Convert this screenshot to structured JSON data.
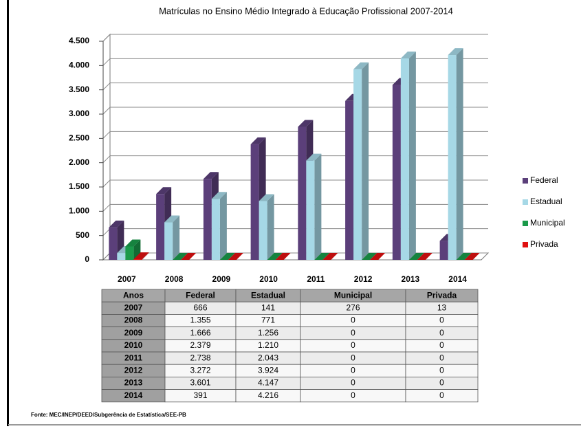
{
  "chart_data": {
    "type": "bar3d",
    "title": "Matrículas no Ensino Médio Integrado à Educação Profissional 2007-2014",
    "categories": [
      "2007",
      "2008",
      "2009",
      "2010",
      "2011",
      "2012",
      "2013",
      "2014"
    ],
    "series": [
      {
        "name": "Federal",
        "color": "#5b3f7a",
        "values": [
          666,
          1355,
          1666,
          2379,
          2738,
          3272,
          3601,
          391
        ],
        "value_labels": [
          "666",
          "1.355",
          "1.666",
          "2.379",
          "2.738",
          "3.272",
          "3.601",
          "391"
        ]
      },
      {
        "name": "Estadual",
        "color": "#a6d8e6",
        "values": [
          141,
          771,
          1256,
          1210,
          2043,
          3924,
          4147,
          4216
        ],
        "value_labels": [
          "141",
          "771",
          "1.256",
          "1.210",
          "2.043",
          "3.924",
          "4.147",
          "4.216"
        ]
      },
      {
        "name": "Municipal",
        "color": "#1a9a4a",
        "values": [
          276,
          0,
          0,
          0,
          0,
          0,
          0,
          0
        ]
      },
      {
        "name": "Privada",
        "color": "#e01010",
        "values": [
          13,
          0,
          0,
          0,
          0,
          0,
          0,
          0
        ]
      }
    ],
    "ylim": [
      0,
      4500
    ],
    "yticks": [
      0,
      500,
      {
        "value": 1000,
        "label": "1.000"
      },
      {
        "value": 1500,
        "label": "1.500"
      },
      {
        "value": 2000,
        "label": "2.000"
      },
      {
        "value": 2500,
        "label": "2.500"
      },
      {
        "value": 3000,
        "label": "3.000"
      },
      {
        "value": 3500,
        "label": "3.500"
      },
      {
        "value": 4000,
        "label": "4.000"
      },
      {
        "value": 4500,
        "label": "4.500"
      }
    ],
    "grid": true,
    "legend": "right",
    "table": {
      "header": "Anos"
    },
    "source": "Fonte: MEC/INEP/DEED/Subgerência de Estatística/SEE-PB"
  }
}
